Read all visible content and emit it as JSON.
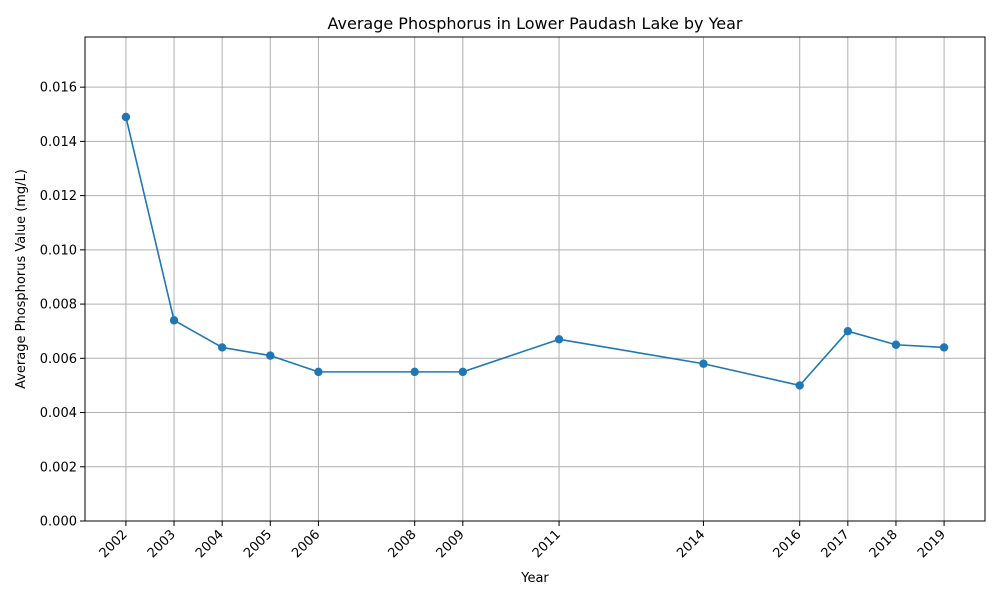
{
  "chart_data": {
    "type": "line",
    "title": "Average Phosphorus in Lower Paudash Lake by Year",
    "xlabel": "Year",
    "ylabel": "Average Phosphorus Value (mg/L)",
    "x": [
      2002,
      2003,
      2004,
      2005,
      2006,
      2008,
      2009,
      2011,
      2014,
      2016,
      2017,
      2018,
      2019
    ],
    "x_tick_labels": [
      "2002",
      "2003",
      "2004",
      "2005",
      "2006",
      "2008",
      "2009",
      "2011",
      "2014",
      "2016",
      "2017",
      "2018",
      "2019"
    ],
    "series": [
      {
        "values": [
          0.0149,
          0.0074,
          0.0064,
          0.0061,
          0.0055,
          0.0055,
          0.0055,
          0.0067,
          0.0058,
          0.005,
          0.007,
          0.0065,
          0.0064
        ],
        "color": "#1f77b4",
        "marker": "circle"
      }
    ],
    "y_ticks": [
      "0.000",
      "0.002",
      "0.004",
      "0.006",
      "0.008",
      "0.010",
      "0.012",
      "0.014",
      "0.016"
    ],
    "xlim": [
      2001.15,
      2019.85
    ],
    "ylim": [
      0,
      0.01785
    ],
    "grid": true,
    "legend": "none"
  }
}
